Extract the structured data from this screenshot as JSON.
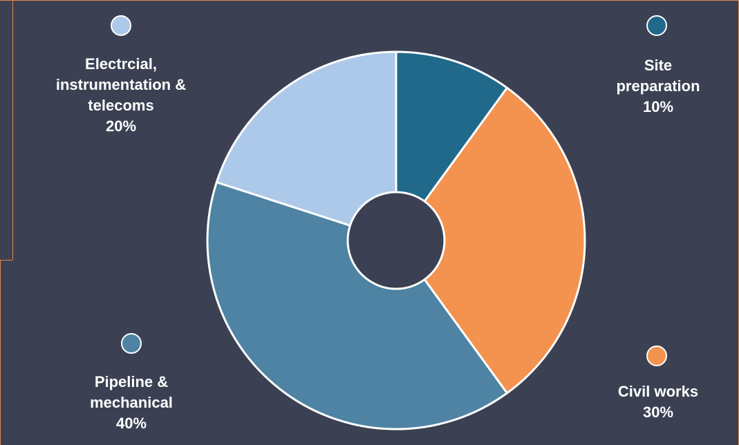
{
  "chart_data": {
    "type": "pie",
    "donut": true,
    "categories": [
      "Site preparation",
      "Civil works",
      "Pipeline & mechanical",
      "Electrcial, instrumentation & telecoms"
    ],
    "values": [
      10,
      30,
      40,
      20
    ],
    "unit": "%",
    "colors": [
      "#20698b",
      "#f4924f",
      "#4e83a3",
      "#adc9ea"
    ],
    "center_color": "#3b4152",
    "legend_placement": "corners",
    "labels": [
      {
        "lines": [
          "Site",
          "preparation",
          "10%"
        ]
      },
      {
        "lines": [
          "Civil works",
          "30%"
        ]
      },
      {
        "lines": [
          "Pipeline &",
          "mechanical",
          "40%"
        ]
      },
      {
        "lines": [
          "Electrcial,",
          "instrumentation &",
          "telecoms",
          "20%"
        ]
      }
    ]
  }
}
